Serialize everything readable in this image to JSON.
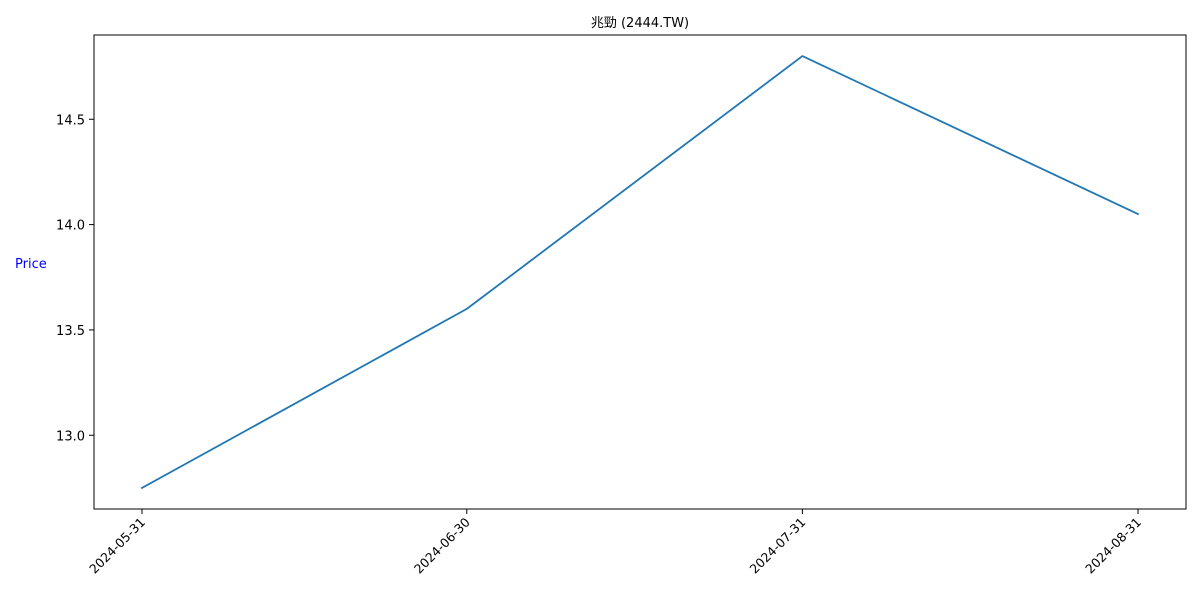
{
  "chart_data": {
    "type": "line",
    "title": "兆勁 (2444.TW)",
    "xlabel": "",
    "ylabel": "Price",
    "x": [
      "2024-05-31",
      "2024-06-30",
      "2024-07-31",
      "2024-08-31"
    ],
    "series": [
      {
        "values": [
          12.75,
          13.6,
          14.8,
          14.05
        ],
        "color": "#1f77b4"
      }
    ],
    "yticks": [
      13.0,
      13.5,
      14.0,
      14.5
    ],
    "ytick_labels": [
      "13.0",
      "13.5",
      "14.0",
      "14.5"
    ],
    "ylim": [
      12.65,
      14.9
    ],
    "grid": false,
    "ylabel_color": "#0000ff"
  }
}
